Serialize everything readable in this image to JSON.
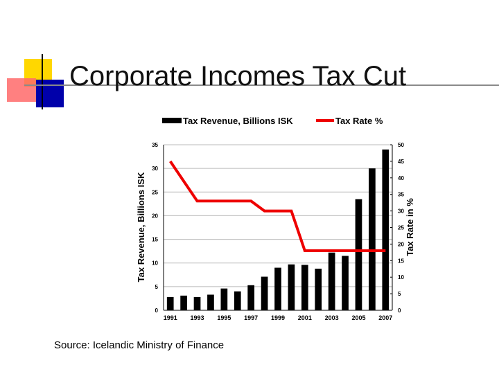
{
  "slide": {
    "title": "Corporate Incomes Tax Cut",
    "source": "Source: Icelandic Ministry of Finance"
  },
  "colors": {
    "bar": "#000000",
    "line": "#ee0000",
    "accent_yellow": "#ffd700",
    "accent_red": "#ff6a6a",
    "accent_blue": "#0000aa"
  },
  "chart_data": {
    "type": "bar",
    "title": "",
    "legend_position": "top",
    "ylabel": "Tax Revenue, Billions ISK",
    "y2label": "Tax Rate in %",
    "ylim": [
      0,
      35
    ],
    "y2lim": [
      0,
      50
    ],
    "yticks": [
      "0",
      "5",
      "10",
      "15",
      "20",
      "25",
      "30",
      "35"
    ],
    "y2ticks": [
      "0",
      "5",
      "10",
      "15",
      "20",
      "25",
      "30",
      "35",
      "40",
      "45",
      "50"
    ],
    "grid": true,
    "categories": [
      "1991",
      "1992",
      "1993",
      "1994",
      "1995",
      "1996",
      "1997",
      "1998",
      "1999",
      "2000",
      "2001",
      "2002",
      "2003",
      "2004",
      "2005",
      "2006",
      "2007"
    ],
    "xticks": [
      "1991",
      "1993",
      "1995",
      "1997",
      "1999",
      "2001",
      "2003",
      "2005",
      "2007"
    ],
    "series": [
      {
        "name": "Tax Revenue, Billions ISK",
        "kind": "bar",
        "axis": "left",
        "values": [
          2.8,
          3.1,
          2.8,
          3.3,
          4.6,
          4.0,
          5.3,
          7.1,
          9.0,
          9.7,
          9.6,
          8.8,
          12.2,
          11.5,
          23.5,
          30.0,
          34.0
        ]
      },
      {
        "name": "Tax Rate %",
        "kind": "line",
        "axis": "right",
        "values": [
          45,
          39,
          33,
          33,
          33,
          33,
          33,
          30,
          30,
          30,
          18,
          18,
          18,
          18,
          18,
          18,
          18
        ]
      }
    ]
  }
}
